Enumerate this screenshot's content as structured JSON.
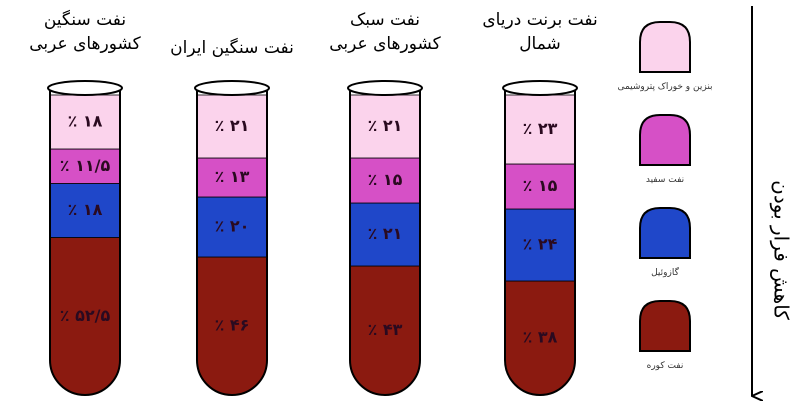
{
  "chart_data": {
    "type": "stacked-tube",
    "categories": [
      "نفت سنگین\nکشورهای عربی",
      "نفت سنگین ایران",
      "نفت سبک\nکشورهای عربی",
      "نفت برنت دریای\nشمال"
    ],
    "series": [
      {
        "name": "نفت کوره",
        "color": "#8b1a10",
        "values": [
          52.5,
          46,
          43,
          38
        ],
        "value_labels": [
          "۵۲/۵ ٪",
          "۴۶ ٪",
          "۴۳ ٪",
          "۳۸ ٪"
        ]
      },
      {
        "name": "گازوئیل",
        "color": "#1f47c9",
        "values": [
          18,
          20,
          21,
          24
        ],
        "value_labels": [
          "۱۸ ٪",
          "۲۰ ٪",
          "۲۱ ٪",
          "۲۴ ٪"
        ]
      },
      {
        "name": "نفت سفید",
        "color": "#d650c6",
        "values": [
          11.5,
          13,
          15,
          15
        ],
        "value_labels": [
          "۱۱/۵ ٪",
          "۱۳ ٪",
          "۱۵ ٪",
          "۱۵ ٪"
        ]
      },
      {
        "name": "بنزین و خوراک پتروشیمی",
        "color": "#fbd3ec",
        "values": [
          18,
          21,
          21,
          23
        ],
        "value_labels": [
          "۱۸ ٪",
          "۲۱ ٪",
          "۲۱ ٪",
          "۲۳ ٪"
        ]
      }
    ],
    "axis_label": "کاهش فرار بودن"
  }
}
